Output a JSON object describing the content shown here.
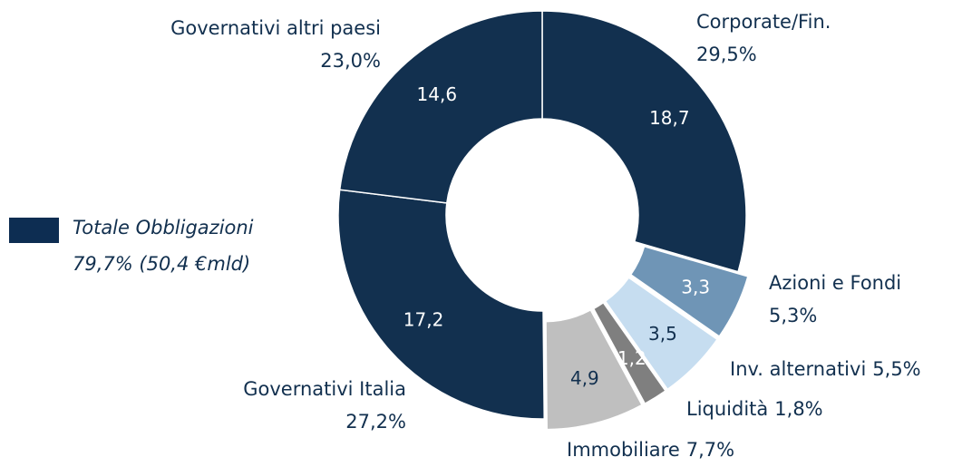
{
  "chart_data": {
    "type": "donut",
    "categories": [
      "Corporate/Fin.",
      "Azioni e Fondi",
      "Inv. alternativi",
      "Liquidità",
      "Immobiliare",
      "Governativi Italia",
      "Governativi altri paesi"
    ],
    "percent_labels": [
      "29,5%",
      "5,3%",
      "5,5%",
      "1,8%",
      "7,7%",
      "27,2%",
      "23,0%"
    ],
    "values": [
      18.7,
      3.3,
      3.5,
      1.2,
      4.9,
      17.2,
      14.6
    ],
    "value_labels": [
      "18,7",
      "3,3",
      "3,5",
      "1,2",
      "4,9",
      "17,2",
      "14,6"
    ],
    "colors": [
      "#12304f",
      "#6f95b6",
      "#c6ddf0",
      "#7f7f7f",
      "#bfbfbf",
      "#12304f",
      "#12304f"
    ],
    "legend": {
      "name": "Totale Obbligazioni",
      "detail": "79,7% (50,4 €mld)",
      "color": "#0d2d52"
    }
  }
}
